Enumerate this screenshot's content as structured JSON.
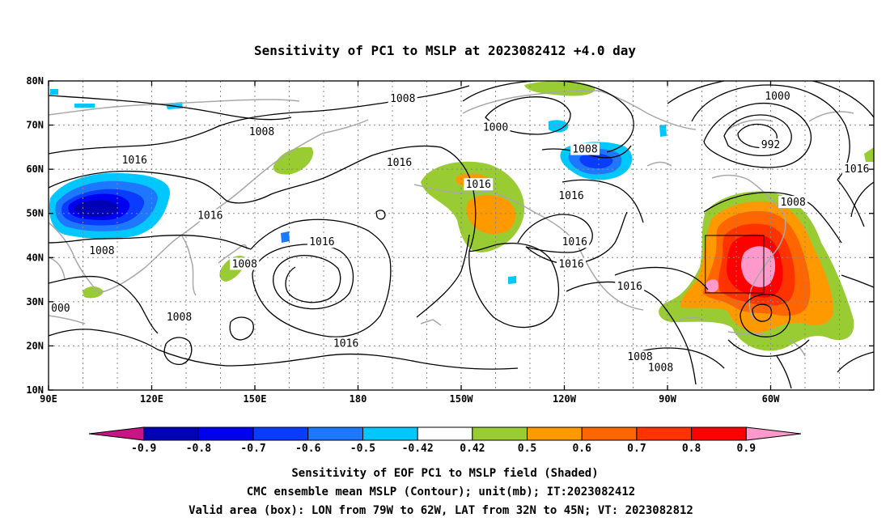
{
  "title": "Sensitivity of PC1 to MSLP at 2023082412 +4.0 day",
  "map": {
    "lon_labels": [
      "90E",
      "120E",
      "150E",
      "180",
      "150W",
      "120W",
      "90W",
      "60W"
    ],
    "lat_labels": [
      "80N",
      "70N",
      "60N",
      "50N",
      "40N",
      "30N",
      "20N",
      "10N"
    ],
    "lon_range": [
      90,
      330
    ],
    "lat_range": [
      10,
      80
    ],
    "grid": "dotted"
  },
  "contour_labels": [
    {
      "text": "1008",
      "lon": 105.5,
      "lat": 41.5
    },
    {
      "text": "1008",
      "lon": 152.0,
      "lat": 68.5
    },
    {
      "text": "1016",
      "lon": 115.0,
      "lat": 62.0
    },
    {
      "text": "1016",
      "lon": 137.0,
      "lat": 49.5
    },
    {
      "text": "1008",
      "lon": 147.0,
      "lat": 38.5
    },
    {
      "text": "1016",
      "lon": 169.5,
      "lat": 43.5
    },
    {
      "text": "1008",
      "lon": 193.0,
      "lat": 76.0
    },
    {
      "text": "1016",
      "lon": 192.0,
      "lat": 61.5
    },
    {
      "text": "1000",
      "lon": 220.0,
      "lat": 69.5
    },
    {
      "text": "1016",
      "lon": 215.0,
      "lat": 56.5
    },
    {
      "text": "1008",
      "lon": 246.0,
      "lat": 64.5
    },
    {
      "text": "1016",
      "lon": 242.0,
      "lat": 54.0
    },
    {
      "text": "1016",
      "lon": 243.0,
      "lat": 43.5
    },
    {
      "text": "1016",
      "lon": 242.0,
      "lat": 38.5
    },
    {
      "text": "1016",
      "lon": 259.0,
      "lat": 33.5
    },
    {
      "text": "1008",
      "lon": 128.0,
      "lat": 26.5
    },
    {
      "text": "1016",
      "lon": 176.5,
      "lat": 20.5
    },
    {
      "text": "1008",
      "lon": 262.0,
      "lat": 17.5
    },
    {
      "text": "1008",
      "lon": 268.0,
      "lat": 15.0
    },
    {
      "text": "1000",
      "lon": 302.0,
      "lat": 76.5
    },
    {
      "text": "992",
      "lon": 300.0,
      "lat": 65.5
    },
    {
      "text": "1016",
      "lon": 325.0,
      "lat": 60.0
    },
    {
      "text": "1008",
      "lon": 306.5,
      "lat": 52.5
    },
    {
      "text": "000",
      "lon": 93.5,
      "lat": 28.5
    }
  ],
  "valid_box": {
    "lon_min": 281,
    "lon_max": 298,
    "lat_min": 32,
    "lat_max": 45
  },
  "colorbar": {
    "tick_labels": [
      "-0.9",
      "-0.8",
      "-0.7",
      "-0.6",
      "-0.5",
      "-0.42",
      "0.42",
      "0.5",
      "0.6",
      "0.7",
      "0.8",
      "0.9"
    ],
    "colors": [
      "#c71585",
      "#0000b4",
      "#0000f0",
      "#0a3cff",
      "#1e78ff",
      "#00c8ff",
      "#ffffff",
      "#99cc33",
      "#ff9900",
      "#ff6600",
      "#ff3300",
      "#ff0000",
      "#ff99cc"
    ]
  },
  "footer": {
    "line1": "Sensitivity of EOF PC1 to MSLP field (Shaded)",
    "line2": "CMC ensemble mean MSLP (Contour); unit(mb); IT:2023082412",
    "line3": "Valid area (box): LON from 79W to 62W, LAT from 32N to 45N; VT: 2023082812"
  }
}
